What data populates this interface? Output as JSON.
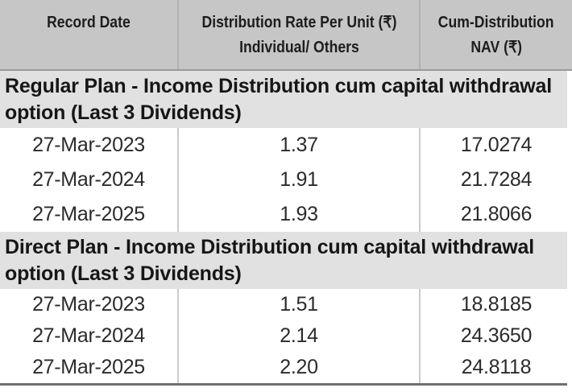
{
  "table": {
    "header": {
      "record_date": "Record Date",
      "rate_line1": "Distribution Rate Per Unit (₹)",
      "rate_line2": "Individual/ Others",
      "nav_line1": "Cum-Distribution",
      "nav_line2": "NAV (₹)"
    },
    "sections": [
      {
        "title": "Regular Plan - Income Distribution cum capital withdrawal option (Last 3 Dividends)",
        "rows": [
          {
            "record_date": "27-Mar-2023",
            "distribution_rate": "1.37",
            "cum_distribution_nav": "17.0274"
          },
          {
            "record_date": "27-Mar-2024",
            "distribution_rate": "1.91",
            "cum_distribution_nav": "21.7284"
          },
          {
            "record_date": "27-Mar-2025",
            "distribution_rate": "1.93",
            "cum_distribution_nav": "21.8066"
          }
        ]
      },
      {
        "title": "Direct Plan - Income Distribution cum capital withdrawal option (Last 3 Dividends)",
        "rows": [
          {
            "record_date": "27-Mar-2023",
            "distribution_rate": "1.51",
            "cum_distribution_nav": "18.8185"
          },
          {
            "record_date": "27-Mar-2024",
            "distribution_rate": "2.14",
            "cum_distribution_nav": "24.3650"
          },
          {
            "record_date": "27-Mar-2025",
            "distribution_rate": "2.20",
            "cum_distribution_nav": "24.8118"
          }
        ]
      }
    ]
  },
  "colors": {
    "header_background": "#c6c6c6",
    "section_background": "#e1e1e1",
    "row_background": "#ffffff",
    "text": "#1d1d1d",
    "divider": "#cbcbcb",
    "bottom_rule": "#6f6f6f"
  }
}
